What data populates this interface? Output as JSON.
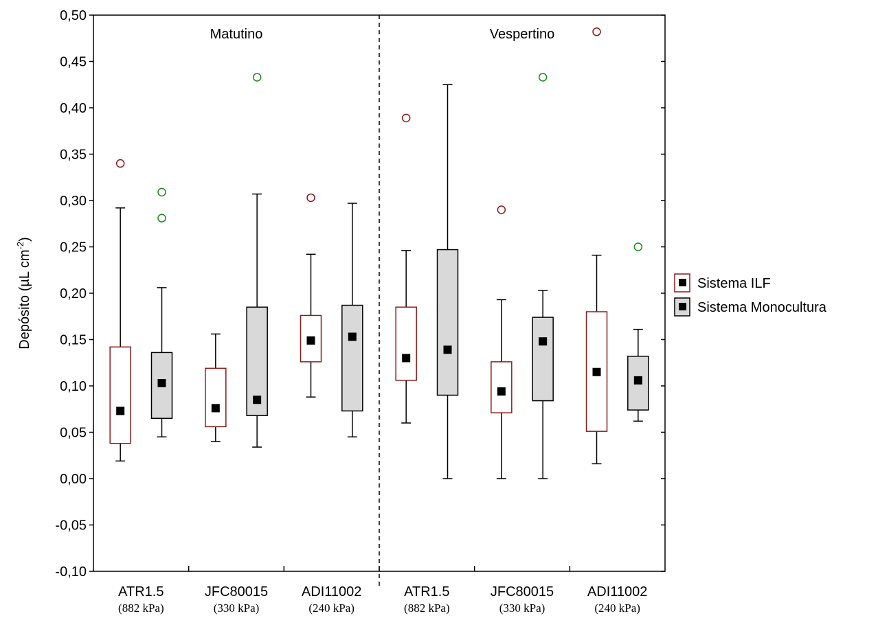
{
  "chart_data": {
    "type": "box",
    "ylabel_main": "Depósito (µL cm",
    "ylabel_sup": "-2",
    "ylabel_close": ")",
    "ylim": [
      -0.1,
      0.5
    ],
    "yticks": [
      {
        "v": -0.1,
        "label": "-0,10"
      },
      {
        "v": -0.05,
        "label": "-0,05"
      },
      {
        "v": 0.0,
        "label": "0,00"
      },
      {
        "v": 0.05,
        "label": "0,05"
      },
      {
        "v": 0.1,
        "label": "0,10"
      },
      {
        "v": 0.15,
        "label": "0,15"
      },
      {
        "v": 0.2,
        "label": "0,20"
      },
      {
        "v": 0.25,
        "label": "0,25"
      },
      {
        "v": 0.3,
        "label": "0,30"
      },
      {
        "v": 0.35,
        "label": "0,35"
      },
      {
        "v": 0.4,
        "label": "0,40"
      },
      {
        "v": 0.45,
        "label": "0,45"
      },
      {
        "v": 0.5,
        "label": "0,50"
      }
    ],
    "periods": [
      "Matutino",
      "Vespertino"
    ],
    "categories": [
      {
        "name": "ATR1.5",
        "pressure": "(882 kPa)"
      },
      {
        "name": "JFC80015",
        "pressure": "(330 kPa)"
      },
      {
        "name": "ADI11002",
        "pressure": "(240 kPa)"
      },
      {
        "name": "ATR1.5",
        "pressure": "(882 kPa)"
      },
      {
        "name": "JFC80015",
        "pressure": "(330 kPa)"
      },
      {
        "name": "ADI11002",
        "pressure": "(240 kPa)"
      }
    ],
    "series": [
      {
        "name": "Sistema ILF",
        "box_color": "#8b1a1a",
        "box_fill": "#ffffff",
        "outlier_color": "#8b1a1a",
        "boxes": [
          {
            "min": 0.019,
            "q1": 0.038,
            "median": 0.073,
            "q3": 0.142,
            "max": 0.292,
            "outliers": [
              0.34
            ]
          },
          {
            "min": 0.04,
            "q1": 0.056,
            "median": 0.076,
            "q3": 0.119,
            "max": 0.156,
            "outliers": []
          },
          {
            "min": 0.088,
            "q1": 0.126,
            "median": 0.149,
            "q3": 0.176,
            "max": 0.242,
            "outliers": [
              0.303
            ]
          },
          {
            "min": 0.06,
            "q1": 0.106,
            "median": 0.13,
            "q3": 0.185,
            "max": 0.246,
            "outliers": [
              0.389
            ]
          },
          {
            "min": 0.0,
            "q1": 0.071,
            "median": 0.094,
            "q3": 0.126,
            "max": 0.193,
            "outliers": [
              0.29
            ]
          },
          {
            "min": 0.016,
            "q1": 0.051,
            "median": 0.115,
            "q3": 0.18,
            "max": 0.241,
            "outliers": [
              0.482
            ]
          }
        ]
      },
      {
        "name": "Sistema Monocultura",
        "box_color": "#000000",
        "box_fill": "#d9d9d9",
        "outlier_color": "#1a8a1a",
        "boxes": [
          {
            "min": 0.045,
            "q1": 0.065,
            "median": 0.103,
            "q3": 0.136,
            "max": 0.206,
            "outliers": [
              0.309,
              0.281
            ]
          },
          {
            "min": 0.034,
            "q1": 0.068,
            "median": 0.085,
            "q3": 0.185,
            "max": 0.307,
            "outliers": [
              0.433
            ]
          },
          {
            "min": 0.045,
            "q1": 0.073,
            "median": 0.153,
            "q3": 0.187,
            "max": 0.297,
            "outliers": []
          },
          {
            "min": 0.0,
            "q1": 0.09,
            "median": 0.139,
            "q3": 0.247,
            "max": 0.425,
            "outliers": []
          },
          {
            "min": 0.0,
            "q1": 0.084,
            "median": 0.148,
            "q3": 0.174,
            "max": 0.203,
            "outliers": [
              0.433
            ]
          },
          {
            "min": 0.062,
            "q1": 0.074,
            "median": 0.106,
            "q3": 0.132,
            "max": 0.161,
            "outliers": [
              0.25
            ]
          }
        ]
      }
    ],
    "legend": {
      "position": "right"
    },
    "grid": false
  }
}
